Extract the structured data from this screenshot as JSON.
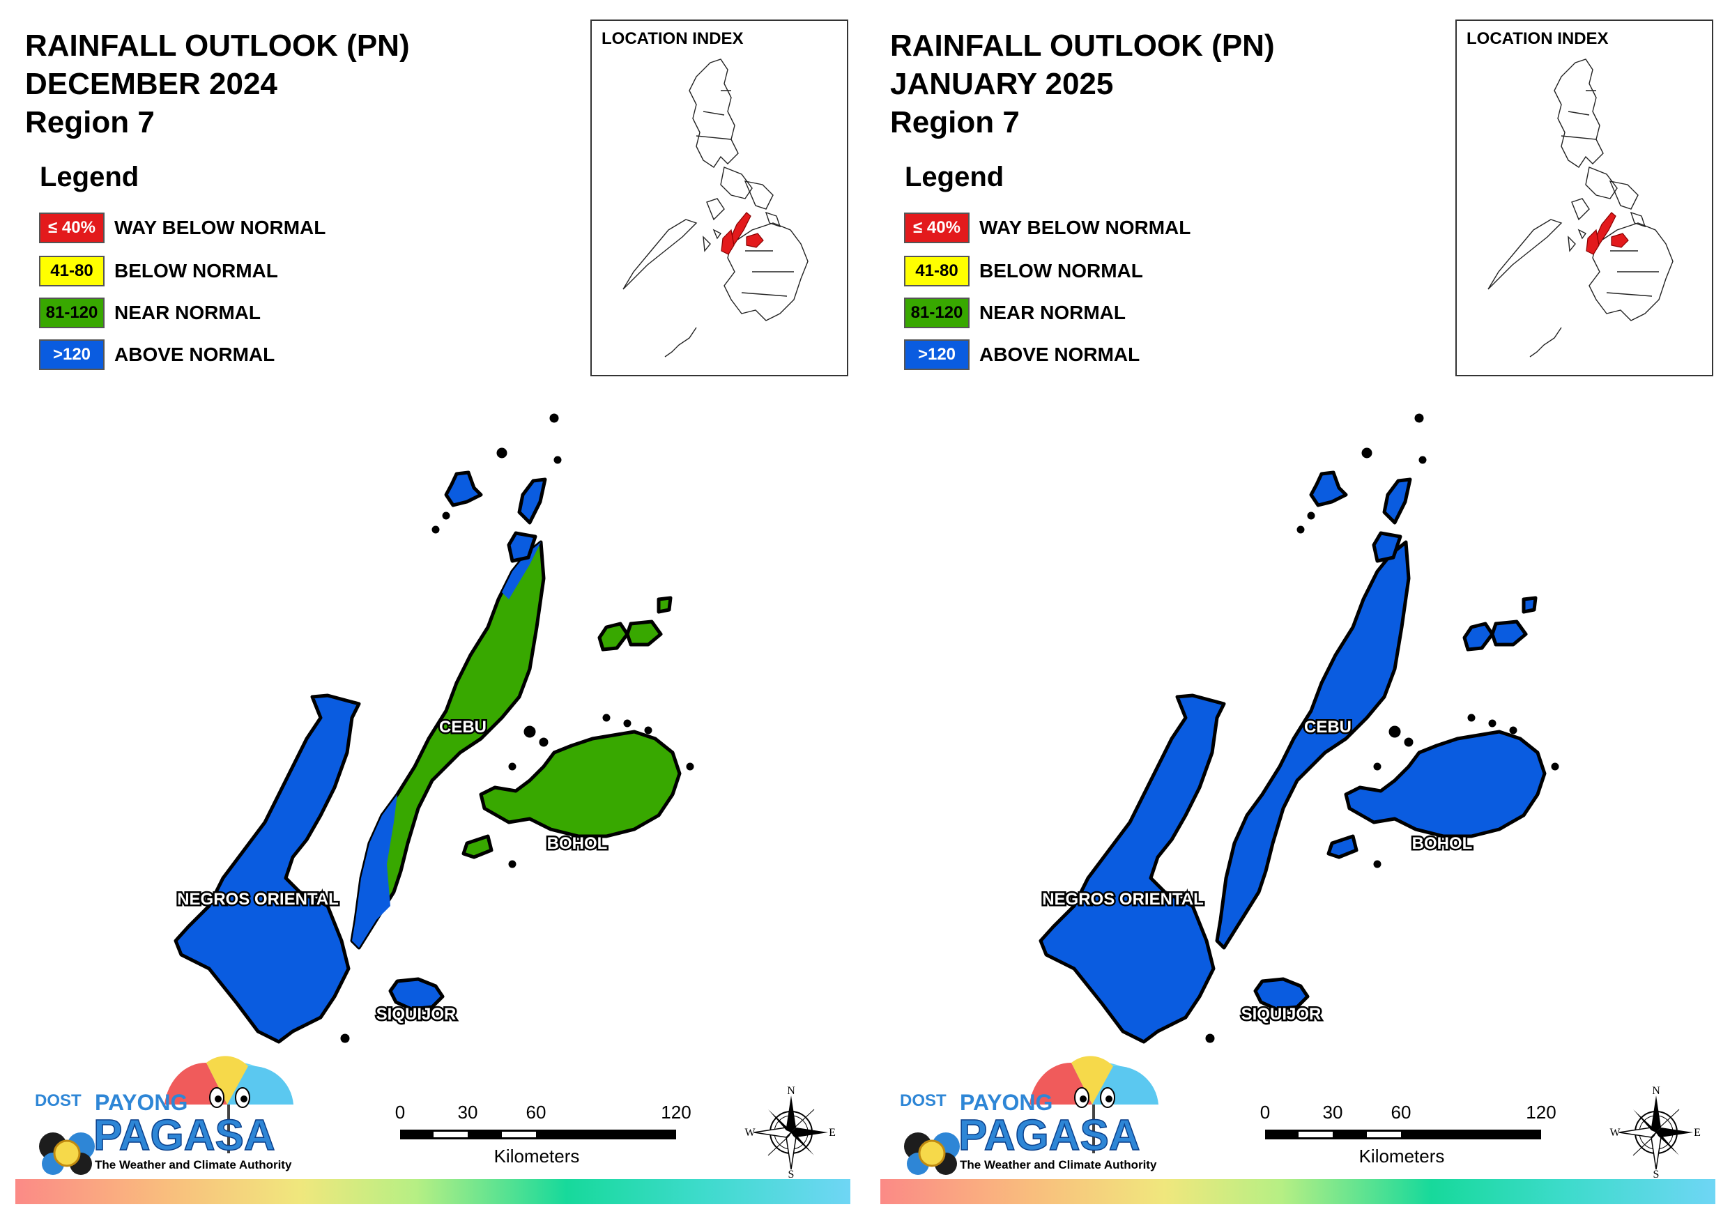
{
  "panels": [
    {
      "title_line1": "RAINFALL OUTLOOK (PN)",
      "title_line2": "DECEMBER 2024",
      "title_line3": "Region 7",
      "provinces": {
        "cebu": {
          "label": "CEBU",
          "category": "near_normal"
        },
        "bohol": {
          "label": "BOHOL",
          "category": "near_normal"
        },
        "negros": {
          "label": "NEGROS ORIENTAL",
          "category": "above_normal"
        },
        "siquijor": {
          "label": "SIQUIJOR",
          "category": "above_normal"
        }
      }
    },
    {
      "title_line1": "RAINFALL OUTLOOK (PN)",
      "title_line2": "JANUARY 2025",
      "title_line3": "Region 7",
      "provinces": {
        "cebu": {
          "label": "CEBU",
          "category": "above_normal"
        },
        "bohol": {
          "label": "BOHOL",
          "category": "above_normal"
        },
        "negros": {
          "label": "NEGROS ORIENTAL",
          "category": "above_normal"
        },
        "siquijor": {
          "label": "SIQUIJOR",
          "category": "above_normal"
        }
      }
    }
  ],
  "legend": {
    "title": "Legend",
    "items": [
      {
        "range": "≤ 40%",
        "label": "WAY BELOW NORMAL",
        "color": "#e31a1c",
        "text_color": "#ffffff",
        "key": "way_below"
      },
      {
        "range": "41-80",
        "label": "BELOW NORMAL",
        "color": "#ffff00",
        "text_color": "#000000",
        "key": "below"
      },
      {
        "range": "81-120",
        "label": "NEAR NORMAL",
        "color": "#38a800",
        "text_color": "#000000",
        "key": "near_normal"
      },
      {
        "range": ">120",
        "label": "ABOVE NORMAL",
        "color": "#0a5ce0",
        "text_color": "#ffffff",
        "key": "above_normal"
      }
    ]
  },
  "inset": {
    "title": "LOCATION INDEX",
    "highlight_color": "#e31a1c"
  },
  "scale": {
    "ticks": [
      "0",
      "30",
      "60",
      "120"
    ],
    "unit": "Kilometers"
  },
  "compass": {
    "n": "N",
    "e": "E",
    "s": "S",
    "w": "W"
  },
  "logo": {
    "dost": "DOST",
    "payong": "PAYONG",
    "pagasa": "PAGASA",
    "tagline": "The Weather and Climate Authority"
  },
  "colors": {
    "green": "#38a800",
    "blue": "#0a5ce0"
  }
}
